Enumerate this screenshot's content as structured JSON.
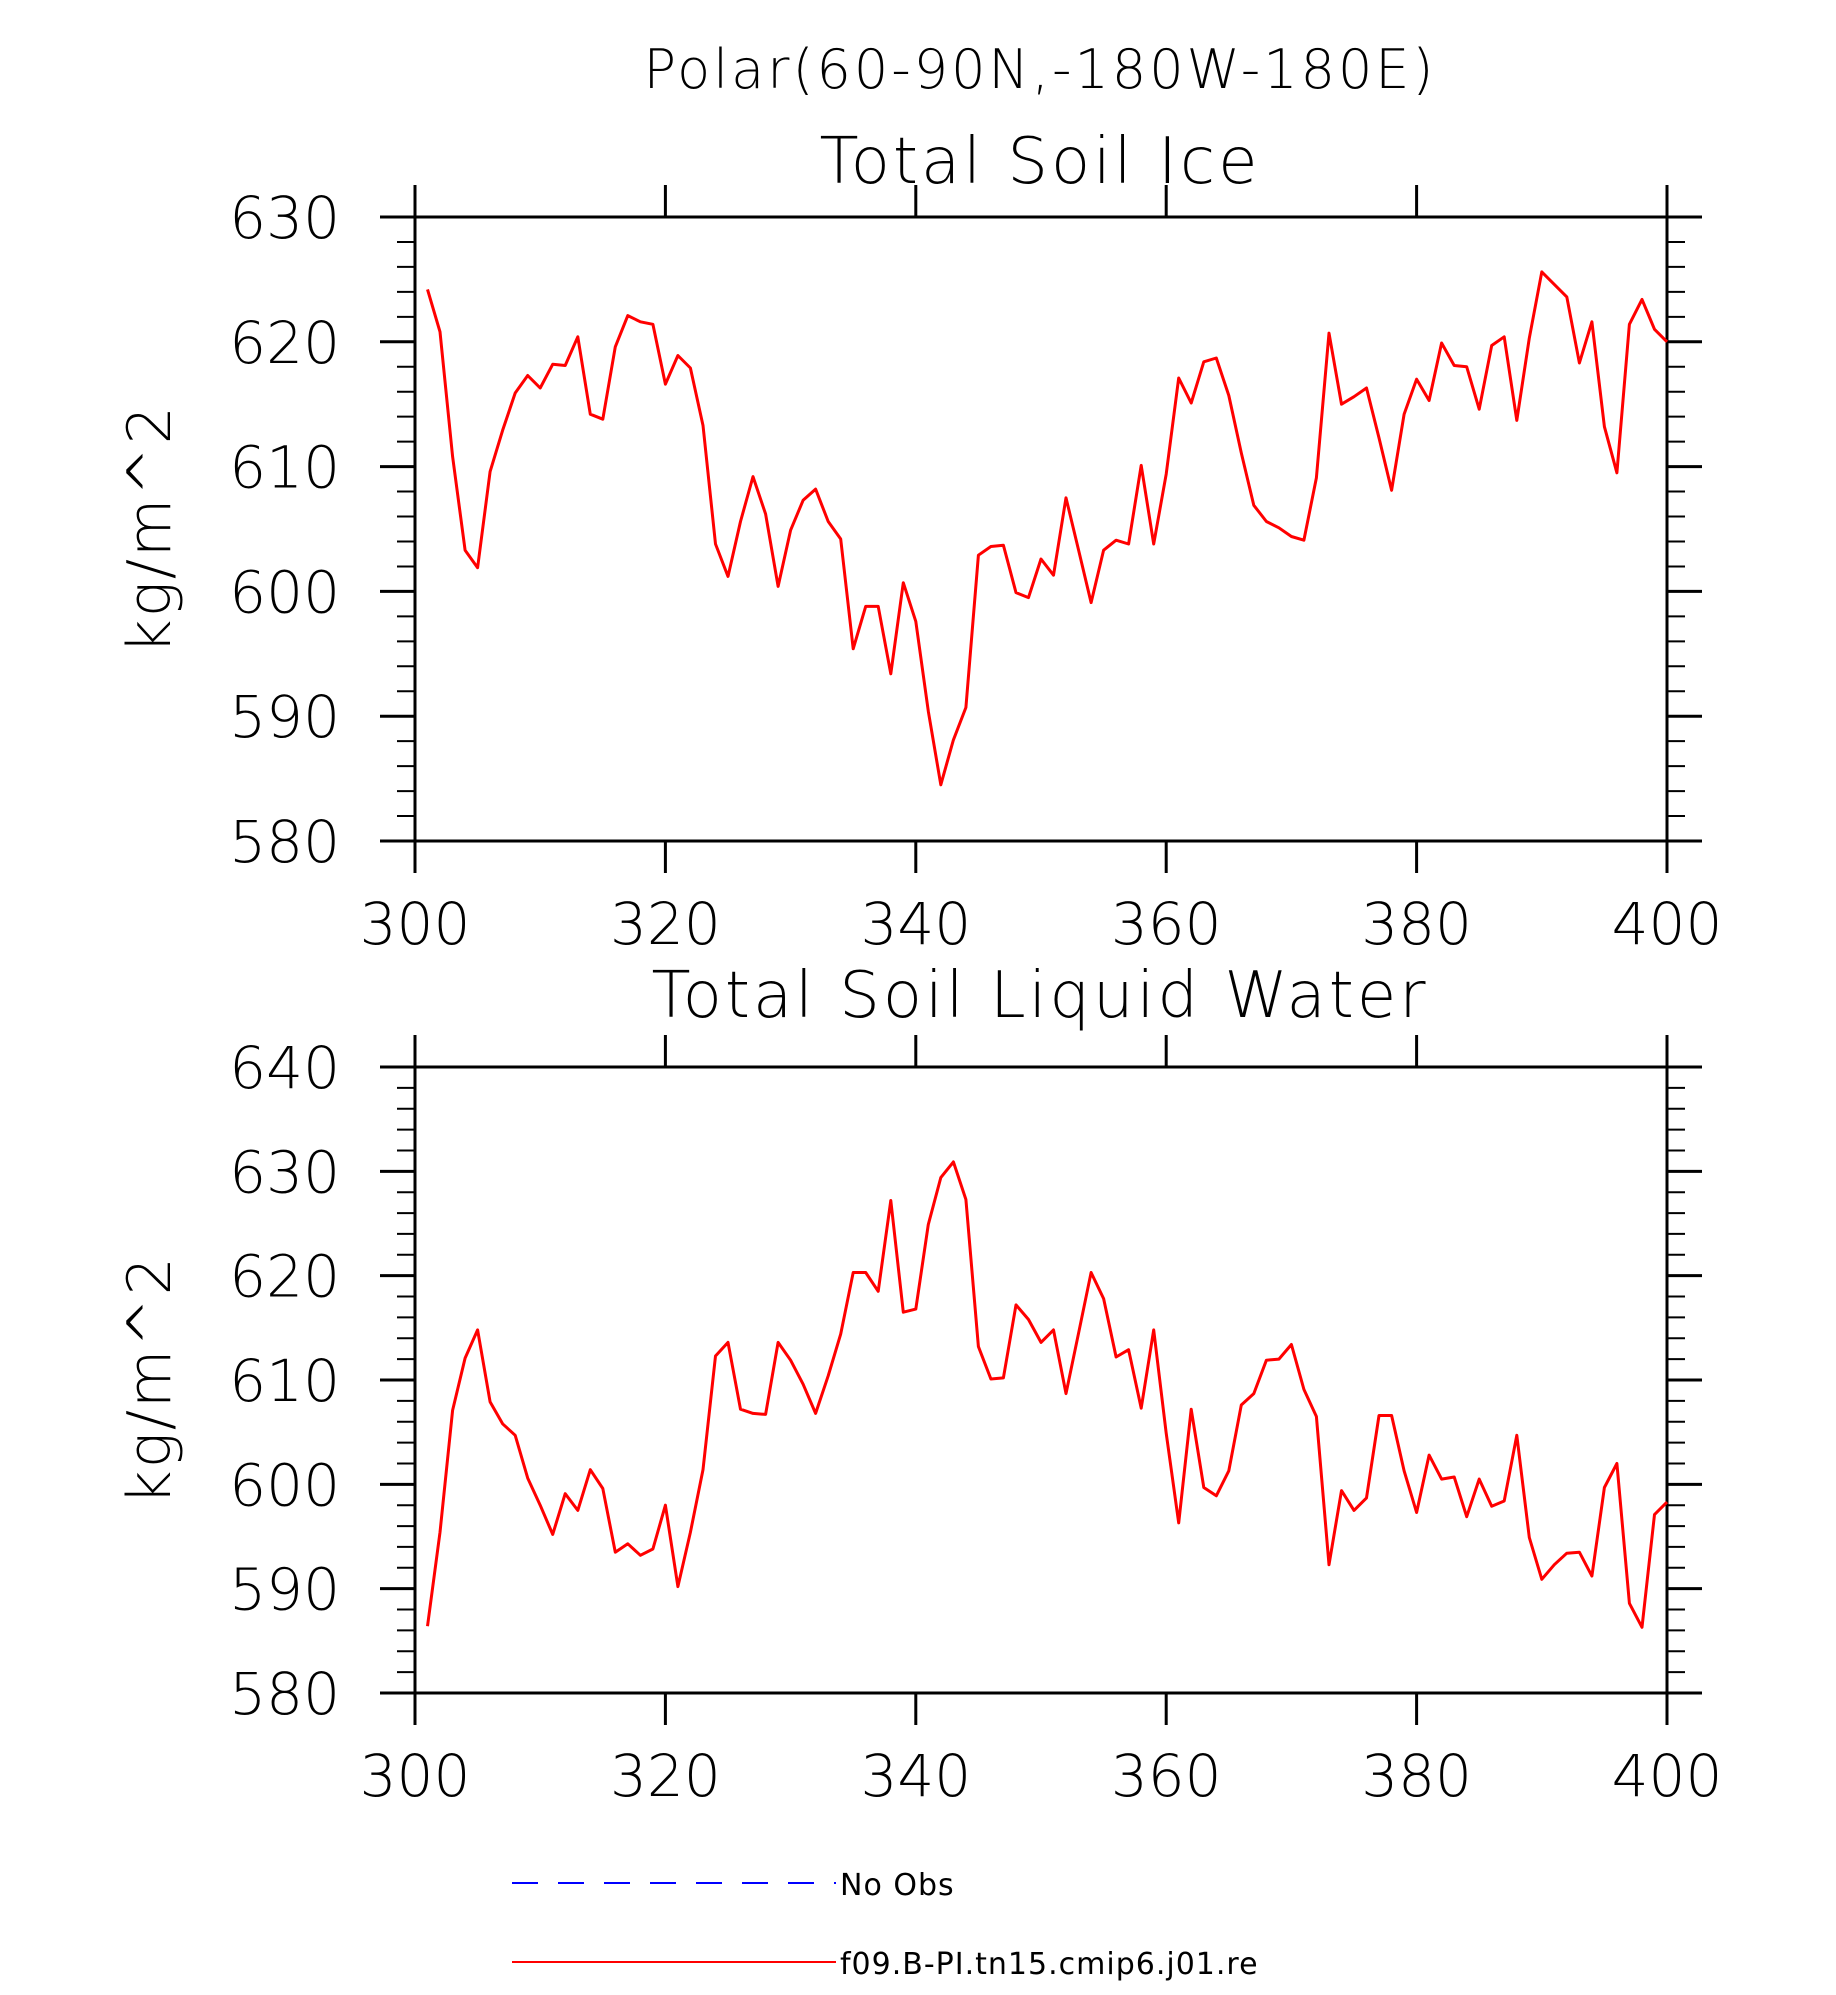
{
  "figure": {
    "title": "Polar(60-90N,-180W-180E)"
  },
  "colors": {
    "model": "#ff0000",
    "obs": "#0000ff",
    "axes": "#000000"
  },
  "legend": {
    "entries": [
      {
        "label": "No Obs",
        "style": "dashed",
        "color": "#0000ff"
      },
      {
        "label": "f09.B-PI.tn15.cmip6.j01.re",
        "style": "solid",
        "color": "#ff0000"
      }
    ]
  },
  "chart_data": [
    {
      "type": "line",
      "title": "Total Soil Ice",
      "xlabel": "",
      "ylabel": "kg/m^2",
      "xlim": [
        300,
        400
      ],
      "ylim": [
        580,
        630
      ],
      "xticks": [
        300,
        320,
        340,
        360,
        380,
        400
      ],
      "yticks": [
        580,
        590,
        600,
        610,
        620,
        630
      ],
      "x_start": 301,
      "series": [
        {
          "name": "f09.B-PI.tn15.cmip6.j01.re",
          "color": "#ff0000",
          "values": [
            624.2,
            620.8,
            610.8,
            603.3,
            601.9,
            609.6,
            612.9,
            615.9,
            617.3,
            616.3,
            618.2,
            618.1,
            620.4,
            614.2,
            613.8,
            619.6,
            622.1,
            621.6,
            621.4,
            616.6,
            618.9,
            617.9,
            613.3,
            603.8,
            601.2,
            605.6,
            609.2,
            606.2,
            600.4,
            604.9,
            607.3,
            608.2,
            605.6,
            604.2,
            595.4,
            598.8,
            598.8,
            593.4,
            600.7,
            597.6,
            590.4,
            584.5,
            588.1,
            590.7,
            602.9,
            603.6,
            603.7,
            599.9,
            599.5,
            602.6,
            601.3,
            607.5,
            603.3,
            599.1,
            603.3,
            604.1,
            603.8,
            610.1,
            603.8,
            609.4,
            617.1,
            615.1,
            618.4,
            618.7,
            615.7,
            611.1,
            606.9,
            605.6,
            605.1,
            604.4,
            604.1,
            609.1,
            620.7,
            615.0,
            615.6,
            616.3,
            612.3,
            608.1,
            614.2,
            617.0,
            615.3,
            619.9,
            618.1,
            618.0,
            614.6,
            619.7,
            620.4,
            613.7,
            620.3,
            625.6,
            624.6,
            623.6,
            618.3,
            621.6,
            613.2,
            609.5,
            621.4,
            623.4,
            621.0,
            620.0
          ]
        }
      ]
    },
    {
      "type": "line",
      "title": "Total Soil Liquid Water",
      "xlabel": "",
      "ylabel": "kg/m^2",
      "xlim": [
        300,
        400
      ],
      "ylim": [
        580,
        640
      ],
      "xticks": [
        300,
        320,
        340,
        360,
        380,
        400
      ],
      "yticks": [
        580,
        590,
        600,
        610,
        620,
        630,
        640
      ],
      "x_start": 301,
      "series": [
        {
          "name": "f09.B-PI.tn15.cmip6.j01.re",
          "color": "#ff0000",
          "values": [
            586.4,
            595.4,
            607.1,
            612.1,
            614.8,
            607.9,
            605.8,
            604.7,
            600.6,
            598.0,
            595.2,
            599.1,
            597.5,
            601.4,
            599.6,
            593.5,
            594.3,
            593.2,
            593.8,
            598.0,
            590.2,
            595.4,
            601.4,
            612.3,
            613.6,
            607.2,
            606.8,
            606.7,
            613.6,
            611.9,
            609.6,
            606.8,
            610.4,
            614.4,
            620.3,
            620.3,
            618.5,
            627.2,
            616.5,
            616.8,
            624.9,
            629.4,
            630.9,
            627.3,
            613.2,
            610.1,
            610.2,
            617.2,
            615.8,
            613.6,
            614.8,
            608.7,
            614.5,
            620.3,
            617.8,
            612.2,
            612.9,
            607.3,
            614.8,
            604.9,
            596.3,
            607.2,
            599.7,
            598.9,
            601.3,
            607.6,
            608.7,
            611.9,
            612.0,
            613.4,
            609.1,
            606.5,
            592.3,
            599.4,
            597.5,
            598.7,
            606.6,
            606.6,
            601.3,
            597.3,
            602.8,
            600.5,
            600.7,
            596.9,
            600.5,
            597.9,
            598.4,
            604.7,
            594.9,
            590.9,
            592.3,
            593.4,
            593.5,
            591.2,
            599.7,
            602.0,
            588.6,
            586.3,
            597.1,
            598.3
          ]
        }
      ]
    }
  ]
}
